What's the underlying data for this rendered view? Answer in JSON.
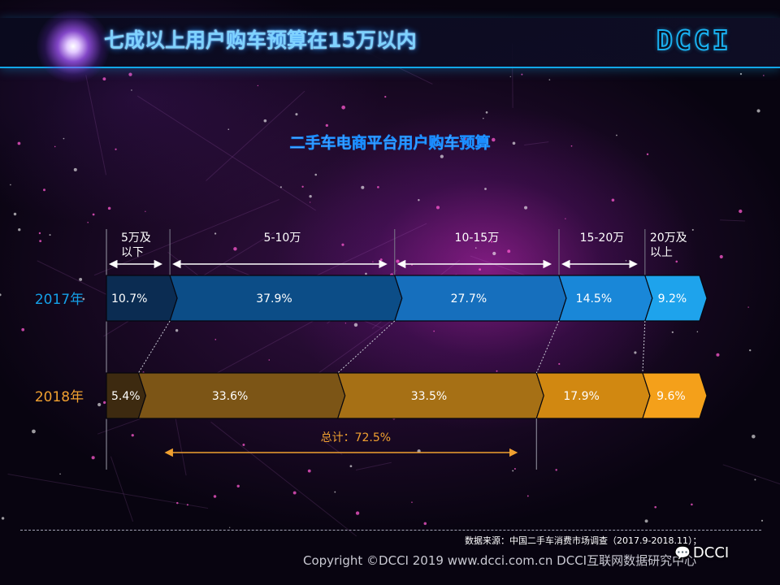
{
  "header": {
    "title": "七成以上用户购车预算在15万以内",
    "logo_text": "DCCI"
  },
  "chart_data": {
    "type": "bar",
    "orientation": "horizontal",
    "stacked": true,
    "title": "二手车电商平台用户购车预算",
    "categories": [
      "5万及以下",
      "5-10万",
      "10-15万",
      "15-20万",
      "20万及以上"
    ],
    "category_labels": [
      [
        "5万及",
        "以下"
      ],
      [
        "5-10万"
      ],
      [
        "10-15万"
      ],
      [
        "15-20万"
      ],
      [
        "20万及",
        "以上"
      ]
    ],
    "series": [
      {
        "name": "2017年",
        "values": [
          10.7,
          37.9,
          27.7,
          14.5,
          9.2
        ],
        "labels": [
          "10.7%",
          "37.9%",
          "27.7%",
          "14.5%",
          "9.2%"
        ],
        "colors": [
          "#0b2c52",
          "#0c4d87",
          "#166fbd",
          "#1987d8",
          "#1ea3ec"
        ],
        "label_color": "#14a0e8"
      },
      {
        "name": "2018年",
        "values": [
          5.4,
          33.6,
          33.5,
          17.9,
          9.6
        ],
        "labels": [
          "5.4%",
          "33.6%",
          "33.5%",
          "17.9%",
          "9.6%"
        ],
        "colors": [
          "#3d2a10",
          "#7c5516",
          "#a67015",
          "#d18811",
          "#f4a01a"
        ],
        "label_color": "#f0a030"
      }
    ],
    "annotation": {
      "text": "总计：72.5%",
      "color": "#f0a030"
    },
    "xlim": [
      0,
      100
    ],
    "grid": false,
    "legend": "none"
  },
  "footer": {
    "source": "数据来源：中国二手车消费市场调查（2017.9-2018.11）；",
    "copyright": "Copyright ©DCCI 2019  www.dcci.com.cn   DCCI互联网数据研究中心",
    "wechat_label": "DCCI"
  }
}
